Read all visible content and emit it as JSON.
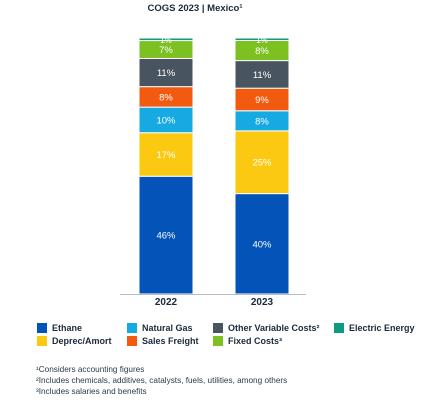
{
  "chart_data": {
    "type": "bar",
    "stacked": true,
    "title": "COGS 2023 | Mexico¹",
    "categories": [
      "2022",
      "2023"
    ],
    "series": [
      {
        "name": "Ethane",
        "color": "#0353b8",
        "values": [
          46,
          40
        ],
        "labels": [
          "46%",
          "40%"
        ]
      },
      {
        "name": "Deprec/Amort",
        "color": "#fcc912",
        "values": [
          17,
          25
        ],
        "labels": [
          "17%",
          "25%"
        ]
      },
      {
        "name": "Natural Gas",
        "color": "#17a9e1",
        "values": [
          10,
          8
        ],
        "labels": [
          "10%",
          "8%"
        ]
      },
      {
        "name": "Sales Freight",
        "color": "#f25a10",
        "values": [
          8,
          9
        ],
        "labels": [
          "8%",
          "9%"
        ]
      },
      {
        "name": "Other Variable Costs²",
        "color": "#485460",
        "values": [
          11,
          11
        ],
        "labels": [
          "11%",
          "11%"
        ]
      },
      {
        "name": "Fixed Costs³",
        "color": "#7cc121",
        "values": [
          7,
          8
        ],
        "labels": [
          "7%",
          "8%"
        ]
      },
      {
        "name": "Electric Energy",
        "color": "#0e9b82",
        "values": [
          1,
          1
        ],
        "labels": [
          "1%",
          "1%"
        ]
      }
    ],
    "ylim": [
      0,
      100
    ],
    "grid": false,
    "legend_position": "bottom"
  },
  "legend": {
    "items": [
      {
        "label": "Ethane",
        "color": "#0353b8"
      },
      {
        "label": "Natural Gas",
        "color": "#17a9e1"
      },
      {
        "label": "Other Variable Costs²",
        "color": "#485460"
      },
      {
        "label": "Electric Energy",
        "color": "#0e9b82"
      },
      {
        "label": "Deprec/Amort",
        "color": "#fcc912"
      },
      {
        "label": "Sales Freight",
        "color": "#f25a10"
      },
      {
        "label": "Fixed Costs³",
        "color": "#7cc121"
      }
    ]
  },
  "footnotes": [
    "¹Considers accounting figures",
    "²Includes chemicals, additives, catalysts, fuels, utilities, among others",
    "³Includes salaries and benefits"
  ]
}
